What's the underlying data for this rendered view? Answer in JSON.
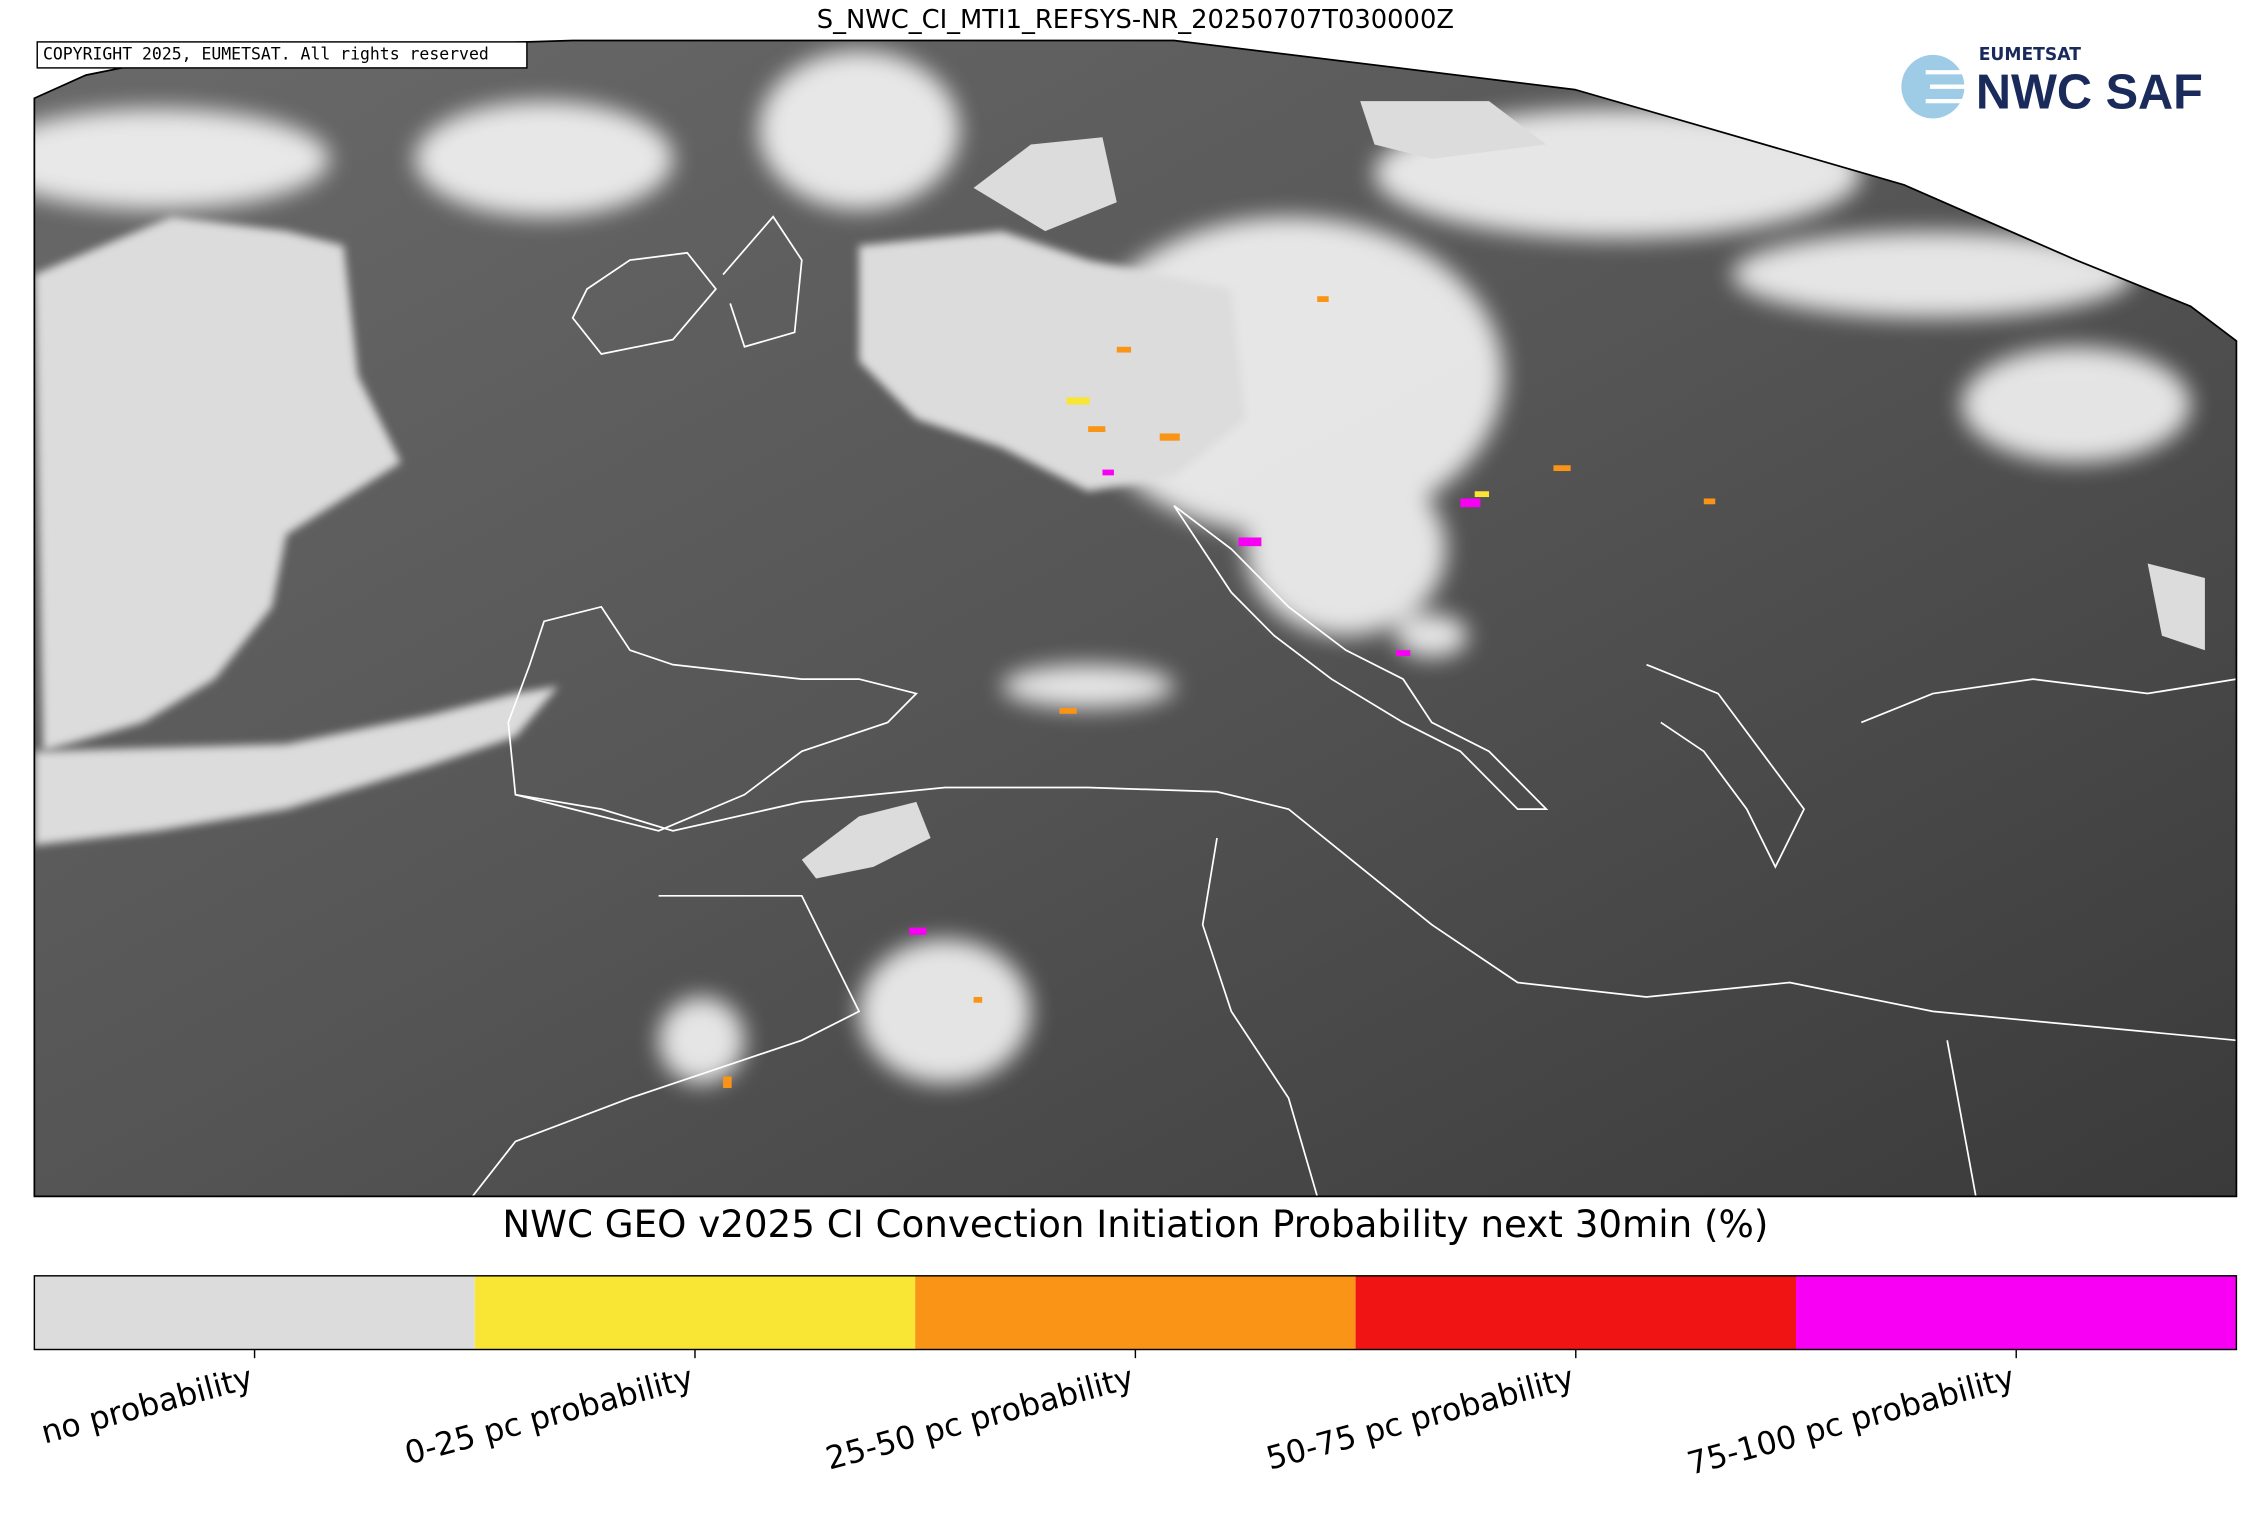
{
  "header": {
    "title": "S_NWC_CI_MTI1_REFSYS-NR_20250707T030000Z",
    "copyright": "COPYRIGHT 2025, EUMETSAT. All rights reserved"
  },
  "logo": {
    "org": "EUMETSAT",
    "name": "NWC SAF"
  },
  "legend": {
    "title": "NWC GEO v2025 CI Convection Initiation Probability next 30min (%)",
    "items": [
      {
        "label": "no probability",
        "color": "#dcdcdc"
      },
      {
        "label": "0-25 pc probability",
        "color": "#f9e634"
      },
      {
        "label": "25-50 pc probability",
        "color": "#f99416"
      },
      {
        "label": "50-75 pc probability",
        "color": "#f01414"
      },
      {
        "label": "75-100 pc probability",
        "color": "#f800f4"
      }
    ]
  }
}
